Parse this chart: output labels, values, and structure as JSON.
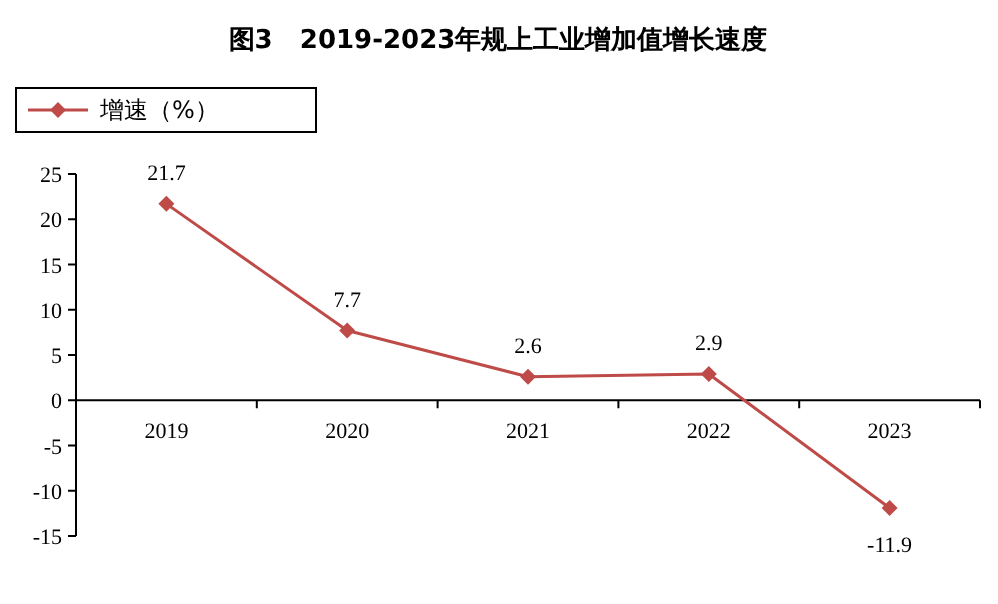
{
  "chart_data": {
    "type": "line",
    "title": "图3   2019-2023年规上工业增加值增长速度",
    "categories": [
      "2019",
      "2020",
      "2021",
      "2022",
      "2023"
    ],
    "series": [
      {
        "name": "增速（%）",
        "color": "#be4b48",
        "values": [
          21.7,
          7.7,
          2.6,
          2.9,
          -11.9
        ]
      }
    ],
    "ylim": [
      -15,
      25
    ],
    "yticks": [
      -15,
      -10,
      -5,
      0,
      5,
      10,
      15,
      20,
      25
    ],
    "data_labels": true,
    "legend": "top left",
    "marker": "diamond"
  }
}
